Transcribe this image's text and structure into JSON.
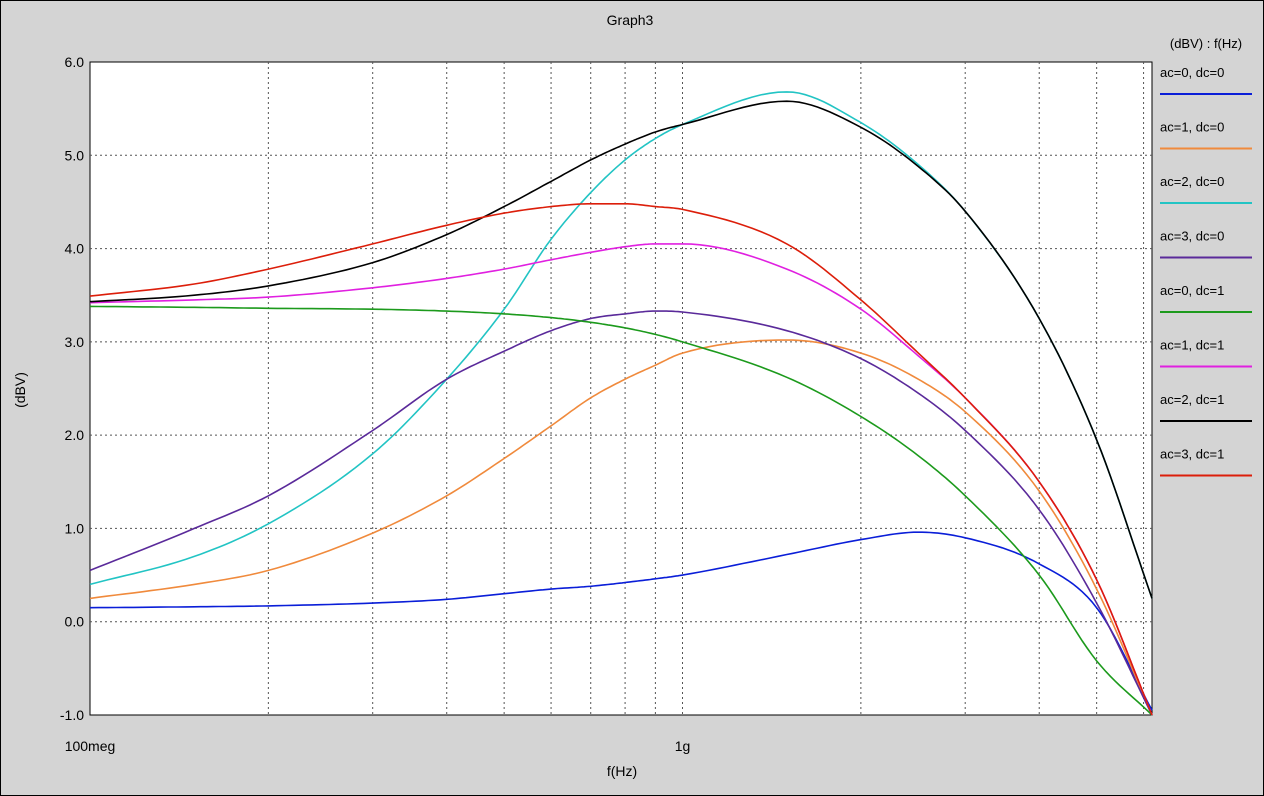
{
  "chart_data": {
    "type": "line",
    "title": "Graph3",
    "xlabel": "f(Hz)",
    "ylabel": "(dBV)",
    "legend_title": "(dBV) : f(Hz)",
    "legend_position": "right",
    "x_scale": "log",
    "xlim": [
      100000000,
      6200000000
    ],
    "ylim": [
      -1.0,
      6.0
    ],
    "grid": true,
    "y_ticks": [
      {
        "value": -1.0,
        "label": "-1.0"
      },
      {
        "value": 0.0,
        "label": "0.0"
      },
      {
        "value": 1.0,
        "label": "1.0"
      },
      {
        "value": 2.0,
        "label": "2.0"
      },
      {
        "value": 3.0,
        "label": "3.0"
      },
      {
        "value": 4.0,
        "label": "4.0"
      },
      {
        "value": 5.0,
        "label": "5.0"
      },
      {
        "value": 6.0,
        "label": "6.0"
      }
    ],
    "x_ticks": [
      {
        "value": 100000000,
        "label": "100meg"
      },
      {
        "value": 1000000000,
        "label": "1g"
      }
    ],
    "x": [
      100000000,
      150000000,
      200000000,
      300000000,
      400000000,
      500000000,
      600000000,
      700000000,
      800000000,
      900000000,
      1000000000,
      1500000000,
      2000000000,
      2500000000,
      3000000000,
      4000000000,
      5000000000,
      6200000000
    ],
    "series": [
      {
        "name": "ac=0, dc=0",
        "color": "#0a1ed8",
        "values": [
          0.15,
          0.16,
          0.17,
          0.2,
          0.24,
          0.3,
          0.35,
          0.38,
          0.42,
          0.46,
          0.5,
          0.72,
          0.88,
          0.96,
          0.9,
          0.62,
          0.15,
          -0.95
        ]
      },
      {
        "name": "ac=1, dc=0",
        "color": "#f08a3c",
        "values": [
          0.25,
          0.4,
          0.55,
          0.95,
          1.35,
          1.75,
          2.1,
          2.4,
          2.6,
          2.75,
          2.88,
          3.02,
          2.88,
          2.6,
          2.25,
          1.4,
          0.35,
          -1.0
        ]
      },
      {
        "name": "ac=2, dc=0",
        "color": "#22c4c4",
        "values": [
          0.4,
          0.7,
          1.05,
          1.8,
          2.6,
          3.35,
          4.1,
          4.6,
          4.95,
          5.18,
          5.33,
          5.68,
          5.35,
          4.9,
          4.4,
          3.25,
          1.95,
          0.25
        ]
      },
      {
        "name": "ac=3, dc=0",
        "color": "#5a2a9a",
        "values": [
          0.55,
          1.0,
          1.35,
          2.05,
          2.6,
          2.9,
          3.12,
          3.25,
          3.3,
          3.33,
          3.32,
          3.12,
          2.82,
          2.45,
          2.05,
          1.2,
          0.2,
          -1.0
        ]
      },
      {
        "name": "ac=0, dc=1",
        "color": "#1c9a1c",
        "values": [
          3.38,
          3.37,
          3.36,
          3.35,
          3.33,
          3.3,
          3.26,
          3.21,
          3.15,
          3.08,
          3.0,
          2.62,
          2.2,
          1.78,
          1.35,
          0.5,
          -0.42,
          -1.0
        ]
      },
      {
        "name": "ac=1, dc=1",
        "color": "#e020e0",
        "values": [
          3.42,
          3.45,
          3.48,
          3.58,
          3.68,
          3.78,
          3.88,
          3.96,
          4.02,
          4.05,
          4.05,
          3.78,
          3.35,
          2.85,
          2.4,
          1.5,
          0.45,
          -1.0
        ]
      },
      {
        "name": "ac=2, dc=1",
        "color": "#000000",
        "values": [
          3.43,
          3.5,
          3.6,
          3.85,
          4.15,
          4.45,
          4.72,
          4.95,
          5.12,
          5.25,
          5.33,
          5.58,
          5.3,
          4.88,
          4.4,
          3.25,
          1.95,
          0.25
        ]
      },
      {
        "name": "ac=3, dc=1",
        "color": "#dc1e0a",
        "values": [
          3.49,
          3.62,
          3.78,
          4.05,
          4.25,
          4.38,
          4.45,
          4.48,
          4.48,
          4.45,
          4.42,
          4.05,
          3.45,
          2.88,
          2.4,
          1.5,
          0.45,
          -1.0
        ]
      }
    ]
  }
}
